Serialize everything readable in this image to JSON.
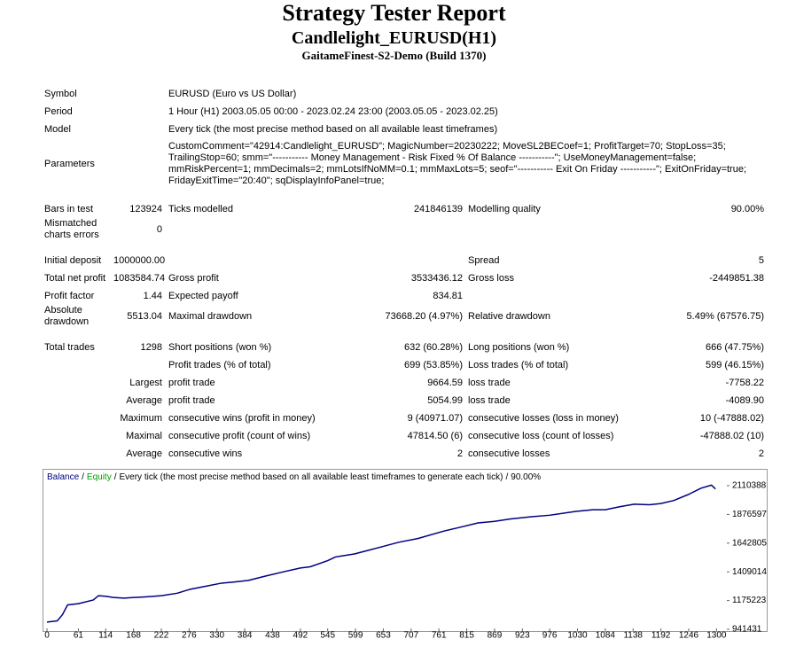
{
  "header": {
    "title": "Strategy Tester Report",
    "subtitle": "Candlelight_EURUSD(H1)",
    "server": "GaitameFinest-S2-Demo (Build 1370)"
  },
  "report": {
    "sections": [
      [
        {
          "label": "Symbol",
          "value": "EURUSD (Euro vs US Dollar)"
        },
        {
          "label": "Period",
          "value": "1 Hour (H1) 2003.05.05 00:00 - 2023.02.24 23:00 (2003.05.05 - 2023.02.25)"
        },
        {
          "label": "Model",
          "value": "Every tick (the most precise method based on all available least timeframes)"
        },
        {
          "label": "Parameters",
          "lines": [
            "CustomComment=\"42914:Candlelight_EURUSD\"; MagicNumber=20230222; MoveSL2BECoef=1; ProfitTarget=70; StopLoss=35;",
            "TrailingStop=60; smm=\"----------- Money Management - Risk Fixed % Of Balance -----------\"; UseMoneyManagement=false;",
            "mmRiskPercent=1; mmDecimals=2; mmLotsIfNoMM=0.1; mmMaxLots=5; seof=\"----------- Exit On Friday -----------\"; ExitOnFriday=true;",
            "FridayExitTime=\"20:40\"; sqDisplayInfoPanel=true;"
          ]
        }
      ],
      [
        {
          "label": "Bars in test",
          "value": "123924",
          "label2": "Ticks modelled",
          "value2": "241846139",
          "label3": "Modelling quality",
          "value3": "90.00%"
        },
        {
          "label": "Mismatched charts errors",
          "value": "0"
        }
      ],
      [
        {
          "label": "Initial deposit",
          "value": "1000000.00",
          "label3": "Spread",
          "value3": "5"
        },
        {
          "label": "Total net profit",
          "value": "1083584.74",
          "label2": "Gross profit",
          "value2": "3533436.12",
          "label3": "Gross loss",
          "value3": "-2449851.38"
        },
        {
          "label": "Profit factor",
          "value": "1.44",
          "label2": "Expected payoff",
          "value2": "834.81"
        },
        {
          "label": "Absolute drawdown",
          "value": "5513.04",
          "label2": "Maximal drawdown",
          "value2": "73668.20 (4.97%)",
          "label3": "Relative drawdown",
          "value3": "5.49% (67576.75)"
        }
      ],
      [
        {
          "label": "Total trades",
          "value": "1298",
          "label2": "Short positions (won %)",
          "value2": "632 (60.28%)",
          "label3": "Long positions (won %)",
          "value3": "666 (47.75%)"
        },
        {
          "label2": "Profit trades (% of total)",
          "value2": "699 (53.85%)",
          "label3": "Loss trades (% of total)",
          "value3": "599 (46.15%)"
        },
        {
          "label": "Largest",
          "label2": "profit trade",
          "value2": "9664.59",
          "label3": "loss trade",
          "value3": "-7758.22"
        },
        {
          "label": "Average",
          "label2": "profit trade",
          "value2": "5054.99",
          "label3": "loss trade",
          "value3": "-4089.90"
        },
        {
          "label": "Maximum",
          "label2": "consecutive wins (profit in money)",
          "value2": "9 (40971.07)",
          "label3": "consecutive losses (loss in money)",
          "value3": "10 (-47888.02)"
        },
        {
          "label": "Maximal",
          "label2": "consecutive profit (count of wins)",
          "value2": "47814.50 (6)",
          "label3": "consecutive loss (count of losses)",
          "value3": "-47888.02 (10)"
        },
        {
          "label": "Average",
          "label2": "consecutive wins",
          "value2": "2",
          "label3": "consecutive losses",
          "value3": "2"
        }
      ]
    ]
  },
  "chart_data": {
    "type": "line",
    "separator": "/",
    "equity_label": "Equity",
    "equity_color": "#00a000",
    "subtitle": "Every tick (the most precise method based on all available least timeframes to generate each tick)",
    "quality": "90.00%",
    "x": [
      0,
      20,
      30,
      40,
      61,
      90,
      100,
      114,
      130,
      150,
      168,
      190,
      222,
      253,
      276,
      300,
      339,
      360,
      391,
      425,
      460,
      492,
      511,
      545,
      560,
      597,
      620,
      650,
      683,
      720,
      770,
      800,
      837,
      869,
      900,
      941,
      976,
      1027,
      1060,
      1084,
      1113,
      1140,
      1170,
      1192,
      1217,
      1246,
      1270,
      1290,
      1298
    ],
    "series": [
      {
        "name": "Balance",
        "color": "#000080",
        "values": [
          1000000,
          1010000,
          1060000,
          1140000,
          1150000,
          1180000,
          1215000,
          1210000,
          1200000,
          1195000,
          1200000,
          1205000,
          1215000,
          1235000,
          1265000,
          1285000,
          1317000,
          1325000,
          1339000,
          1375000,
          1410000,
          1440000,
          1450000,
          1500000,
          1530000,
          1555000,
          1580000,
          1613000,
          1650000,
          1680000,
          1740000,
          1770000,
          1807000,
          1820000,
          1840000,
          1858000,
          1870000,
          1901000,
          1915000,
          1915000,
          1940000,
          1960000,
          1955000,
          1965000,
          1990000,
          2040000,
          2090000,
          2115000,
          2083585
        ]
      }
    ],
    "xlim": [
      0,
      1320
    ],
    "xticks": [
      0,
      61,
      114,
      168,
      222,
      276,
      330,
      384,
      438,
      492,
      545,
      599,
      653,
      707,
      761,
      815,
      869,
      923,
      976,
      1030,
      1084,
      1138,
      1192,
      1246,
      1300
    ],
    "ylim": [
      941431,
      2225840
    ],
    "yticks": [
      941431,
      1175223,
      1409014,
      1642805,
      1876597,
      2110388
    ]
  }
}
